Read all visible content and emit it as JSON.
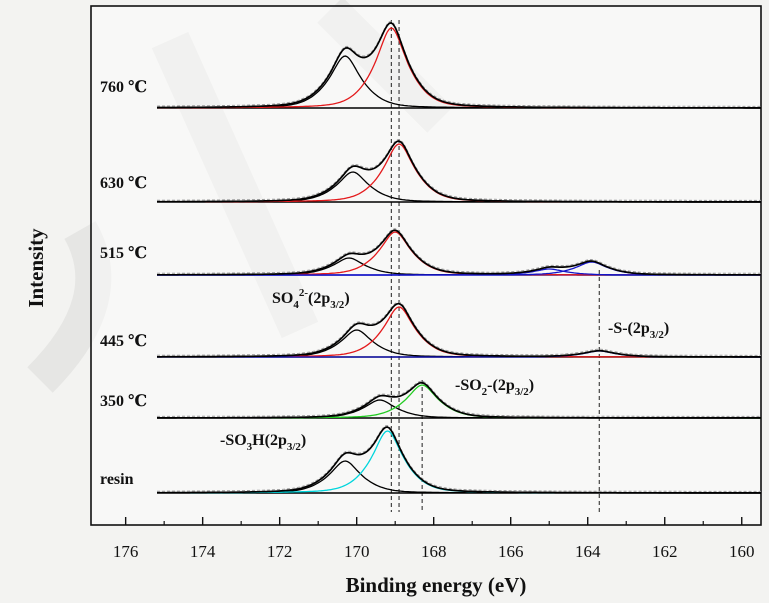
{
  "chart_data": {
    "type": "line",
    "xlabel": "Binding energy (eV)",
    "ylabel": "Intensity",
    "x_reversed": true,
    "xlim": [
      176.9,
      159.5
    ],
    "x_ticks": [
      176,
      174,
      172,
      170,
      168,
      166,
      164,
      162,
      160
    ],
    "x_tick_labels": [
      "176",
      "174",
      "172",
      "170",
      "168",
      "166",
      "164",
      "162",
      "160"
    ],
    "colors": {
      "envelope": "#000000",
      "sulfate": "#e41a1c",
      "sulfonic": "#00d5dc",
      "sulfone": "#22cc22",
      "sulfide": "#1414c8",
      "dashed": "#333333"
    },
    "series": [
      {
        "label": "760 ℃",
        "peaks": [
          {
            "center": 170.3,
            "amplitude": 0.52,
            "color": "sulfate_black"
          },
          {
            "center": 169.1,
            "amplitude": 0.8,
            "color": "sulfate"
          }
        ]
      },
      {
        "label": "630 ℃",
        "peaks": [
          {
            "center": 170.1,
            "amplitude": 0.3,
            "color": "sulfate_black"
          },
          {
            "center": 168.9,
            "amplitude": 0.58,
            "color": "sulfate"
          }
        ]
      },
      {
        "label": "515 ℃",
        "peaks": [
          {
            "center": 170.2,
            "amplitude": 0.17,
            "color": "sulfate_black"
          },
          {
            "center": 169.0,
            "amplitude": 0.43,
            "color": "sulfate"
          },
          {
            "center": 165.0,
            "amplitude": 0.06,
            "color": "sulfide"
          },
          {
            "center": 163.9,
            "amplitude": 0.13,
            "color": "sulfide"
          }
        ]
      },
      {
        "label": "445 ℃",
        "peaks": [
          {
            "center": 170.0,
            "amplitude": 0.27,
            "color": "sulfate_black"
          },
          {
            "center": 168.9,
            "amplitude": 0.5,
            "color": "sulfate"
          },
          {
            "center": 163.7,
            "amplitude": 0.06,
            "color": "sulfide"
          }
        ]
      },
      {
        "label": "350 ℃",
        "peaks": [
          {
            "center": 169.4,
            "amplitude": 0.18,
            "color": "sulfone_black"
          },
          {
            "center": 168.3,
            "amplitude": 0.33,
            "color": "sulfone"
          }
        ]
      },
      {
        "label": "resin",
        "peaks": [
          {
            "center": 170.3,
            "amplitude": 0.32,
            "color": "sulfonic_black"
          },
          {
            "center": 169.2,
            "amplitude": 0.62,
            "color": "sulfonic"
          }
        ]
      }
    ],
    "reference_lines": [
      169.1,
      168.9,
      168.3,
      163.7
    ],
    "annotations": [
      {
        "id": "sulfate",
        "base": "SO",
        "sub1": "4",
        "sup": "2-",
        "mid": "(2p",
        "sub2": "3/2",
        "end": ")"
      },
      {
        "id": "sulfide",
        "base": "-S-(2p",
        "sub1": "3/2",
        "end": ")"
      },
      {
        "id": "sulfone",
        "base": "-SO",
        "sub1": "2",
        "mid": "-(2p",
        "sub2": "3/2",
        "end": ")"
      },
      {
        "id": "sulfonic",
        "base": "-SO",
        "sub1": "3",
        "mid": "H(2p",
        "sub2": "3/2",
        "end": ")"
      }
    ]
  }
}
